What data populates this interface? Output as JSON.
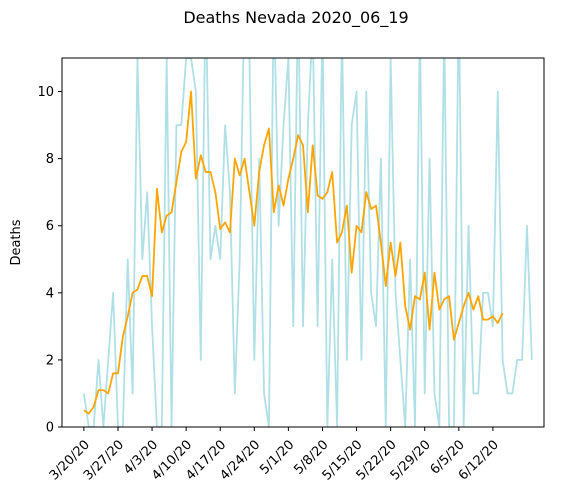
{
  "chart_data": {
    "type": "line",
    "title": "Deaths Nevada 2020_06_19",
    "xlabel": "",
    "ylabel": "Deaths",
    "x_start": "2020-03-20",
    "x_end": "2020-06-18",
    "ylim": [
      0,
      11
    ],
    "grid": false,
    "yticks": [
      0,
      2,
      4,
      6,
      8,
      10
    ],
    "xticks": [
      "3/20/20",
      "3/27/20",
      "4/3/20",
      "4/10/20",
      "4/17/20",
      "4/24/20",
      "5/1/20",
      "5/8/20",
      "5/15/20",
      "5/22/20",
      "5/29/20",
      "6/5/20",
      "6/12/20"
    ],
    "series": [
      {
        "color": "#b0e0e6",
        "values": [
          1,
          0,
          0,
          2,
          0,
          2,
          4,
          0,
          0,
          5,
          1,
          11,
          5,
          7,
          3,
          0,
          0,
          11,
          0,
          9,
          9,
          11,
          11,
          10,
          2,
          13,
          5,
          6,
          5,
          9,
          7,
          1,
          5,
          13,
          11,
          2,
          8,
          1,
          0,
          13,
          6,
          9,
          11,
          3,
          13,
          3,
          9,
          12,
          3,
          12,
          0,
          5,
          0,
          12,
          2,
          9,
          10,
          2,
          10,
          4,
          3,
          8,
          0,
          11,
          4,
          2,
          0,
          5,
          0,
          12,
          1,
          8,
          1,
          0,
          12,
          0,
          0,
          13,
          0,
          6,
          1,
          1,
          4,
          4,
          3,
          10,
          2,
          1,
          1,
          2,
          2,
          6,
          2
        ]
      },
      {
        "color": "#ffa500",
        "values": [
          0.5,
          0.4,
          0.6,
          1.1,
          1.1,
          1.0,
          1.6,
          1.6,
          2.7,
          3.3,
          4.0,
          4.1,
          4.5,
          4.5,
          3.9,
          7.1,
          5.8,
          6.3,
          6.4,
          7.3,
          8.2,
          8.5,
          10.0,
          7.4,
          8.1,
          7.6,
          7.6,
          7.0,
          5.9,
          6.1,
          5.8,
          8.0,
          7.5,
          8.0,
          7.0,
          6.0,
          7.6,
          8.4,
          8.9,
          6.4,
          7.2,
          6.6,
          7.4,
          8.0,
          8.7,
          8.4,
          6.4,
          8.4,
          6.9,
          6.8,
          7.0,
          7.6,
          5.5,
          5.8,
          6.6,
          4.6,
          6.0,
          5.8,
          7.0,
          6.5,
          6.6,
          5.5,
          4.2,
          5.5,
          4.5,
          5.5,
          3.6,
          2.9,
          3.9,
          3.8,
          4.6,
          2.9,
          4.6,
          3.5,
          3.8,
          3.9,
          2.6,
          3.1,
          3.6,
          4.0,
          3.5,
          3.9,
          3.2,
          3.2,
          3.3,
          3.1,
          3.4
        ]
      }
    ]
  }
}
